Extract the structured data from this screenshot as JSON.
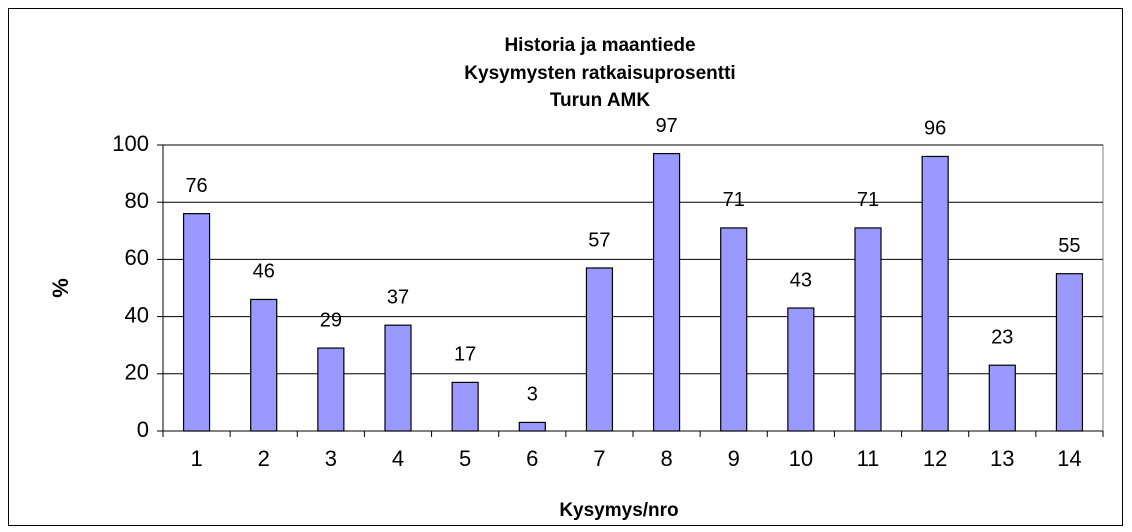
{
  "chart_data": {
    "type": "bar",
    "title": [
      "Historia ja maantiede",
      "Kysymysten ratkaisuprosentti",
      "Turun AMK"
    ],
    "x_label": "Kysymys/nro",
    "y_label": "%",
    "categories": [
      "1",
      "2",
      "3",
      "4",
      "5",
      "6",
      "7",
      "8",
      "9",
      "10",
      "11",
      "12",
      "13",
      "14"
    ],
    "values": [
      76,
      46,
      29,
      37,
      17,
      3,
      57,
      97,
      71,
      43,
      71,
      96,
      23,
      55
    ],
    "color": "#9999ff",
    "ylim": [
      0,
      100
    ],
    "yticks": [
      0,
      20,
      40,
      60,
      80,
      100
    ],
    "grid": true
  }
}
